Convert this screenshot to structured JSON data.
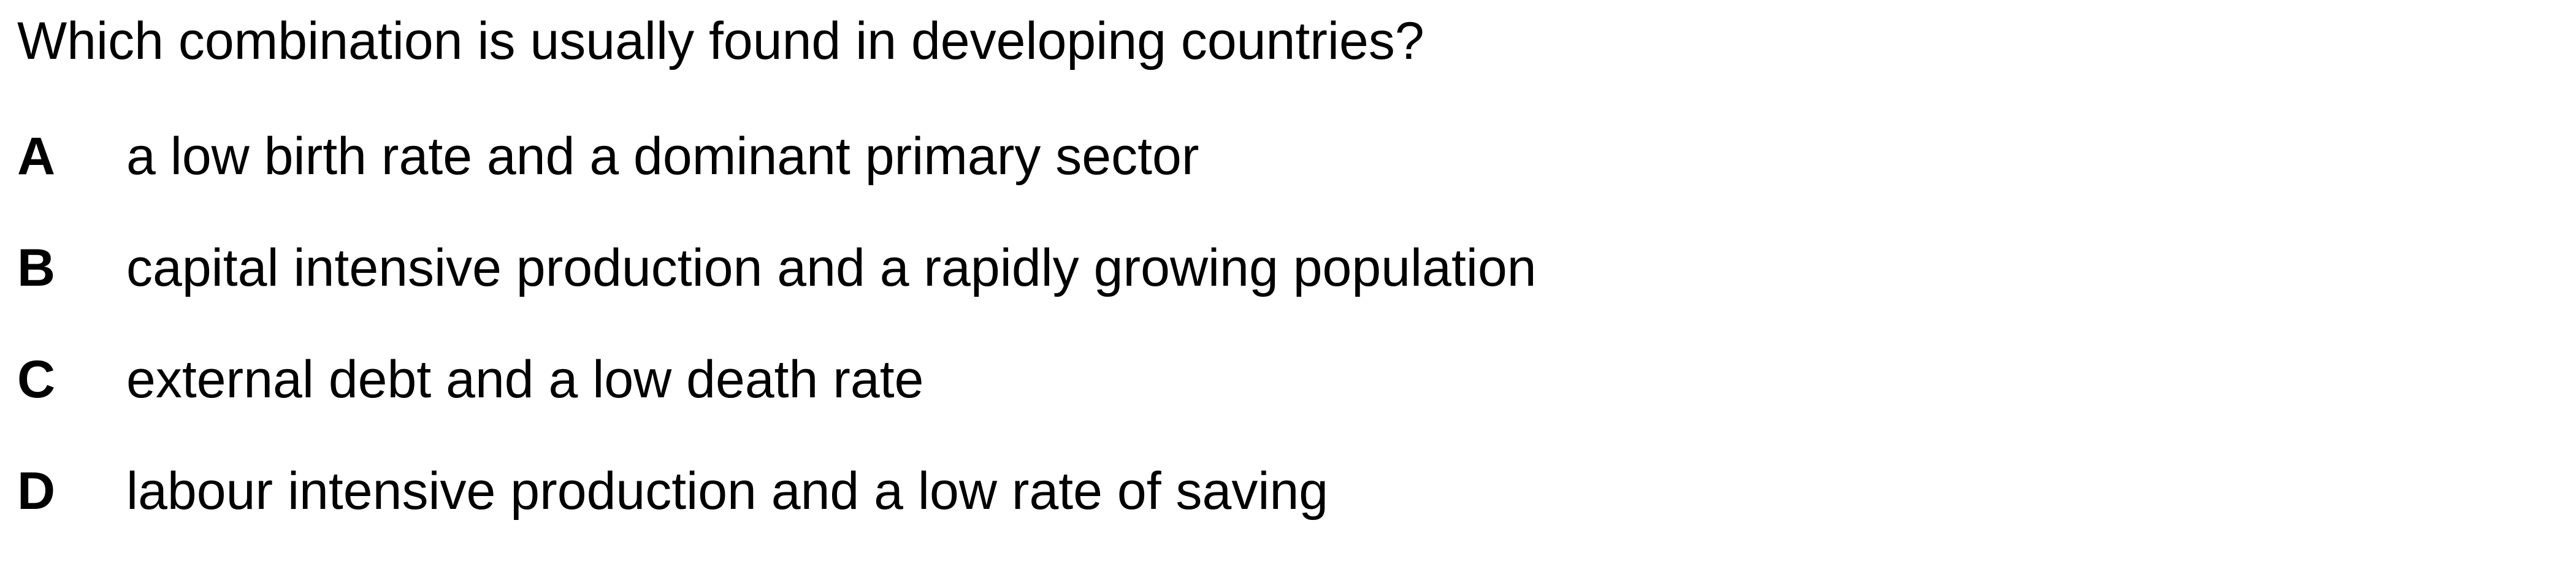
{
  "question": {
    "text": "Which combination is usually found in developing countries?"
  },
  "options": [
    {
      "letter": "A",
      "text": "a low birth rate and a dominant primary sector"
    },
    {
      "letter": "B",
      "text": "capital intensive production and a rapidly growing population"
    },
    {
      "letter": "C",
      "text": "external debt and a low death rate"
    },
    {
      "letter": "D",
      "text": "labour intensive production and a low rate of saving"
    }
  ]
}
